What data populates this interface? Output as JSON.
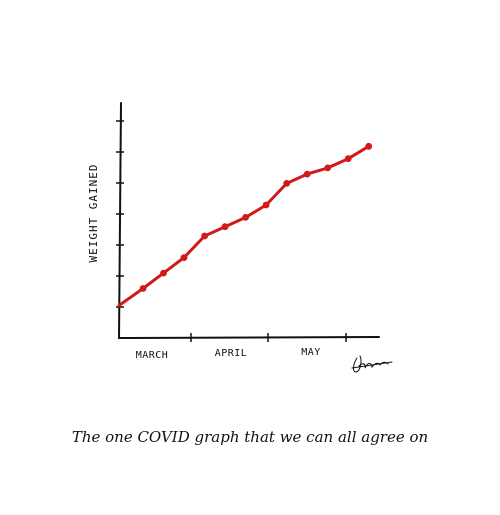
{
  "chart_data": {
    "type": "line",
    "ylabel": "WEIGHT GAINED",
    "xlabel": "",
    "categories": [
      "MARCH",
      "APRIL",
      "MAY"
    ],
    "x": [
      0,
      1,
      2,
      3,
      4,
      5,
      6,
      7,
      8,
      9,
      10,
      11
    ],
    "values": [
      1.6,
      2.1,
      2.6,
      3.3,
      3.6,
      3.9,
      4.3,
      5.0,
      5.3,
      5.5,
      5.8,
      6.2
    ],
    "xlim": [
      0,
      11.5
    ],
    "ylim": [
      0,
      7.6
    ],
    "grid": false,
    "line_color": "#d01919"
  },
  "caption": "The one COVID graph that we can all agree on",
  "signature": "Blitt"
}
